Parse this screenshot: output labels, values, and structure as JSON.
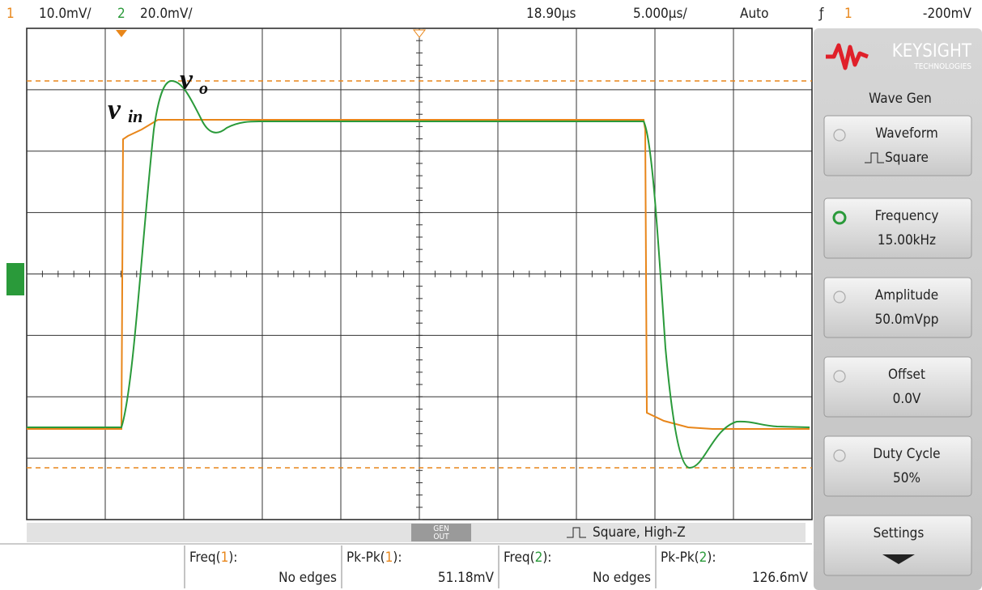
{
  "top_bar": {
    "ch1_number": "1",
    "ch1_scale": "10.0mV/",
    "ch2_number": "2",
    "ch2_scale": "20.0mV/",
    "time_delay": "18.90µs",
    "time_scale": "5.000µs/",
    "trigger_mode": "Auto",
    "trigger_source": "1",
    "trigger_level": "-200mV"
  },
  "annotations": {
    "vin_main": "v",
    "vin_sub": "in",
    "vo_main": "v",
    "vo_sub": "o"
  },
  "side_panel": {
    "brand": "KEYSIGHT",
    "brand_sub": "TECHNOLOGIES",
    "title": "Wave Gen",
    "buttons": [
      {
        "label": "Waveform",
        "value": "Square"
      },
      {
        "label": "Frequency",
        "value": "15.00kHz"
      },
      {
        "label": "Amplitude",
        "value": "50.0mVpp"
      },
      {
        "label": "Offset",
        "value": "0.0V"
      },
      {
        "label": "Duty Cycle",
        "value": "50%"
      },
      {
        "label": "Settings"
      }
    ]
  },
  "status_bar": {
    "gen_out_line1": "GEN",
    "gen_out_line2": "OUT",
    "output": "Square, High-Z"
  },
  "measurements": [
    {
      "prefix": "Freq(",
      "channel": "1",
      "suffix": "):",
      "value": "No edges"
    },
    {
      "prefix": "Pk-Pk(",
      "channel": "1",
      "suffix": "):",
      "value": "51.18mV"
    },
    {
      "prefix": "Freq(",
      "channel": "2",
      "suffix": "):",
      "value": "No edges"
    },
    {
      "prefix": "Pk-Pk(",
      "channel": "2",
      "suffix": "):",
      "value": "126.6mV"
    }
  ]
}
